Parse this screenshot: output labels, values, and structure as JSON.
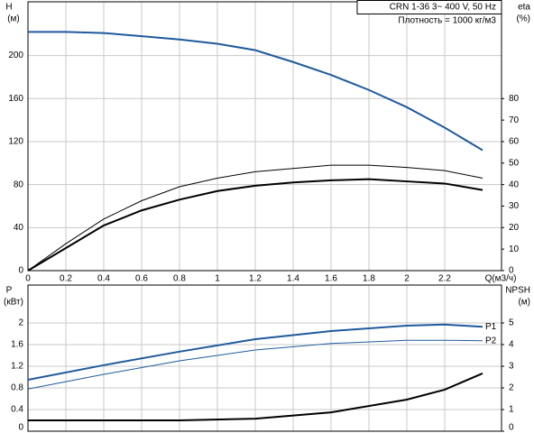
{
  "chart_data": [
    {
      "type": "line",
      "info": [
        "CRN 1-36    3~ 400 V, 50 Hz",
        "Плотность = 1000 кг/м3"
      ],
      "ylabel": "H",
      "yunit": "(м)",
      "y2label": "eta",
      "y2unit": "(%)",
      "xlabel": "Q(м3/ч)",
      "x": [
        0,
        0.2,
        0.4,
        0.6,
        0.8,
        1.0,
        1.2,
        1.4,
        1.6,
        1.8,
        2.0,
        2.2,
        2.4
      ],
      "xlim": [
        0,
        2.5
      ],
      "xticks": [
        0,
        0.2,
        0.4,
        0.6,
        0.8,
        1,
        1.2,
        1.4,
        1.6,
        1.8,
        2,
        2.2
      ],
      "ylim": [
        0,
        250
      ],
      "yticks": [
        0,
        40,
        80,
        120,
        160,
        200
      ],
      "y2lim": [
        0,
        125
      ],
      "y2ticks": [
        0,
        10,
        20,
        30,
        40,
        50,
        60,
        70,
        80
      ],
      "grid": true,
      "series": [
        {
          "color": "#1f5a9c",
          "linewidth": 2,
          "values": [
            222,
            222,
            221,
            218,
            215,
            211,
            205,
            194,
            182,
            168,
            152,
            133,
            112
          ]
        },
        {
          "color": "#000000",
          "linewidth": 1,
          "axis": "y2",
          "values": [
            0,
            12.5,
            24,
            32.5,
            39,
            43,
            46,
            47.5,
            49,
            49,
            48,
            46.5,
            43
          ]
        },
        {
          "color": "#000000",
          "linewidth": 2,
          "axis": "y2",
          "values": [
            0,
            10.5,
            21,
            28,
            33,
            37,
            39.5,
            41,
            42,
            42.5,
            41.5,
            40.5,
            37.5
          ]
        }
      ]
    },
    {
      "type": "line",
      "ylabel": "P",
      "yunit": "(кВт)",
      "y2label": "NPSH",
      "y2unit": "(м)",
      "x": [
        0,
        0.4,
        0.8,
        1.2,
        1.6,
        2.0,
        2.2,
        2.4
      ],
      "xlim": [
        0,
        2.5
      ],
      "ylim": [
        0,
        2.7
      ],
      "yticks": [
        0,
        0.4,
        0.8,
        1.2,
        1.6,
        2
      ],
      "y2lim": [
        0,
        6.75
      ],
      "y2ticks": [
        0,
        1,
        2,
        3,
        4,
        5
      ],
      "grid": true,
      "series": [
        {
          "name": "P1",
          "color": "#1f5a9c",
          "linewidth": 2,
          "values": [
            0.95,
            1.22,
            1.47,
            1.7,
            1.85,
            1.95,
            1.97,
            1.93
          ]
        },
        {
          "name": "P2",
          "color": "#1f5a9c",
          "linewidth": 1,
          "values": [
            0.78,
            1.05,
            1.3,
            1.5,
            1.62,
            1.68,
            1.68,
            1.67
          ]
        },
        {
          "color": "#000000",
          "linewidth": 2,
          "axis": "y2",
          "values": [
            0.5,
            0.5,
            0.5,
            0.58,
            0.87,
            1.46,
            1.92,
            2.67
          ]
        }
      ]
    }
  ]
}
